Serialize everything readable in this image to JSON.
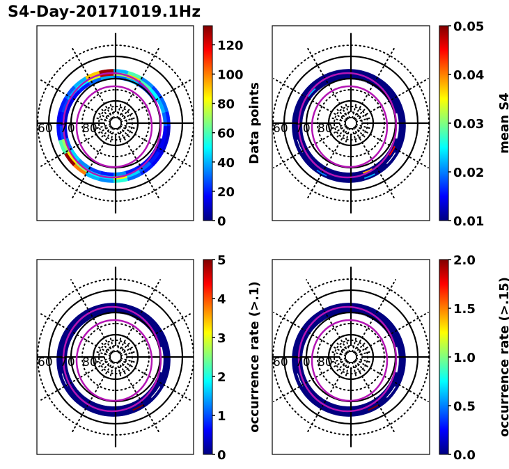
{
  "title": "S4-Day-20171019.1Hz",
  "chart_data": [
    {
      "type": "heatmap",
      "projection": "polar",
      "panel": "top-left",
      "cbar_label": "Data points",
      "cbar_range": [
        0,
        133
      ],
      "cbar_ticks": [
        0,
        20,
        40,
        60,
        80,
        100,
        120
      ],
      "cbar_tick_labels": [
        "0",
        "20",
        "40",
        "60",
        "80",
        "100",
        "120"
      ],
      "colormap": "jet",
      "lat_labels": [
        "60",
        "70",
        "80"
      ],
      "bins": {
        "ring_lat": [
          [
            64.5,
            66
          ],
          [
            66,
            67.5
          ],
          [
            67.5,
            69
          ]
        ],
        "values_by_mlt_hour": [
          [
            55,
            30,
            20,
            15,
            12,
            10,
            20,
            30,
            25,
            35,
            60,
            40,
            130,
            90,
            40,
            28,
            20,
            15,
            18,
            60,
            130,
            100,
            40,
            35
          ],
          [
            85,
            45,
            30,
            20,
            15,
            15,
            30,
            40,
            50,
            60,
            90,
            70,
            125,
            80,
            50,
            40,
            25,
            18,
            25,
            70,
            85,
            70,
            50,
            45
          ],
          [
            35,
            20,
            15,
            10,
            8,
            8,
            15,
            20,
            25,
            25,
            40,
            30,
            40,
            30,
            20,
            15,
            12,
            10,
            12,
            30,
            45,
            35,
            25,
            20
          ]
        ]
      }
    },
    {
      "type": "heatmap",
      "projection": "polar",
      "panel": "top-right",
      "cbar_label": "mean S4",
      "cbar_range": [
        0.01,
        0.05
      ],
      "cbar_ticks": [
        0.01,
        0.02,
        0.03,
        0.04,
        0.05
      ],
      "cbar_tick_labels": [
        "0.01",
        "0.02",
        "0.03",
        "0.04",
        "0.05"
      ],
      "colormap": "jet",
      "lat_labels": [
        "60",
        "70",
        "80"
      ],
      "highlights": [
        {
          "mlt_hour": 1.5,
          "lat": 68,
          "value": 0.038
        },
        {
          "mlt_hour": 2.5,
          "lat": 67.8,
          "value": 0.05
        },
        {
          "mlt_hour": 4.0,
          "lat": 67.5,
          "value": 0.045
        },
        {
          "mlt_hour": 22.0,
          "lat": 65.5,
          "value": 0.02
        },
        {
          "mlt_hour": 1.5,
          "lat": 65.5,
          "value": 0.022
        },
        {
          "mlt_hour": 15.5,
          "lat": 67.2,
          "value": 0.05
        },
        {
          "mlt_hour": 15.2,
          "lat": 67.5,
          "value": 0.022
        }
      ]
    },
    {
      "type": "heatmap",
      "projection": "polar",
      "panel": "bottom-left",
      "cbar_label": "occurrence rate (>.1)",
      "cbar_range": [
        0,
        5
      ],
      "cbar_ticks": [
        0,
        1,
        2,
        3,
        4,
        5
      ],
      "cbar_tick_labels": [
        "0",
        "1",
        "2",
        "3",
        "4",
        "5"
      ],
      "colormap": "jet",
      "lat_labels": [
        "60",
        "70",
        "80"
      ],
      "highlights": [
        {
          "mlt_hour": 1.8,
          "lat": 65.8,
          "value": 5
        },
        {
          "mlt_hour": 15.5,
          "lat": 67.0,
          "value": 5
        }
      ]
    },
    {
      "type": "heatmap",
      "projection": "polar",
      "panel": "bottom-right",
      "cbar_label": "occurrence rate (>.15)",
      "cbar_range": [
        0.0,
        2.0
      ],
      "cbar_ticks": [
        0.0,
        0.5,
        1.0,
        1.5,
        2.0
      ],
      "cbar_tick_labels": [
        "0.0",
        "0.5",
        "1.0",
        "1.5",
        "2.0"
      ],
      "colormap": "jet",
      "lat_labels": [
        "60",
        "70",
        "80"
      ],
      "highlights": [
        {
          "mlt_hour": 1.8,
          "lat": 65.8,
          "value": 2.0
        }
      ]
    }
  ],
  "polar_grid": {
    "solid_circles_lat": [
      60,
      70,
      80
    ],
    "dotted_circles_lat": [
      55,
      85,
      87.5
    ],
    "radial_dotted_step_deg": 30,
    "inner_radial_dotted_step_deg": 15
  },
  "oval_boundaries_color": "#b415b4"
}
